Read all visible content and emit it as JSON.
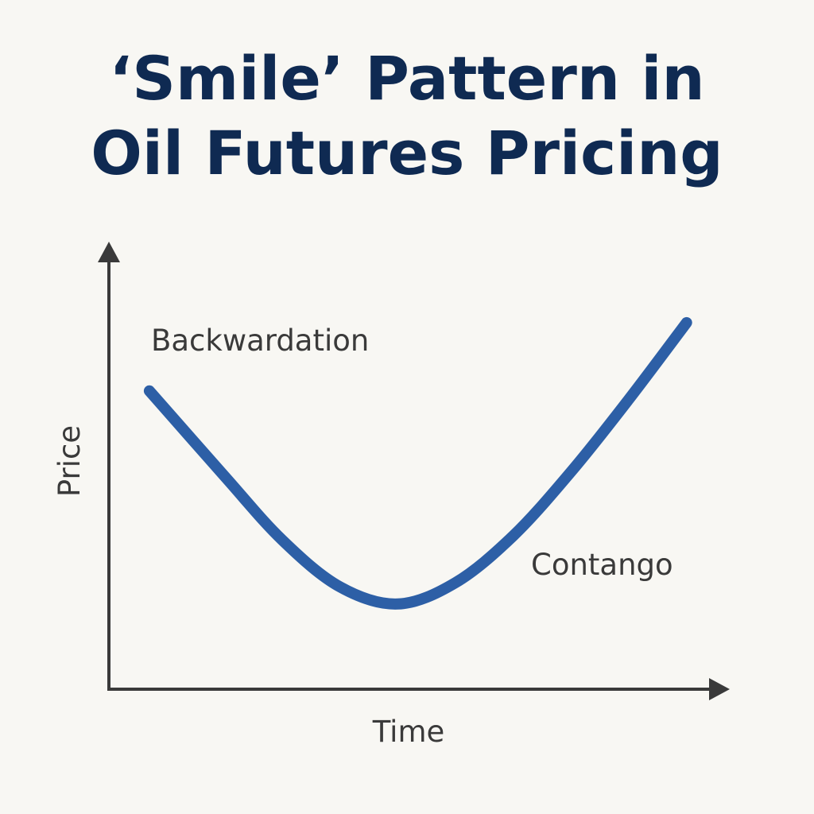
{
  "title": {
    "line1": "‘Smile’ Pattern in",
    "line2": "Oil Futures Pricing"
  },
  "colors": {
    "background": "#f8f7f3",
    "title": "#0f2a52",
    "curve": "#2d5fa6",
    "axis": "#3a3a3a",
    "text": "#3a3a3a"
  },
  "chart_data": {
    "type": "line",
    "title": "‘Smile’ Pattern in Oil Futures Pricing",
    "xlabel": "Time",
    "ylabel": "Price",
    "grid": false,
    "ticks": false,
    "series": [
      {
        "shape": "u-curve",
        "x": [
          0.07,
          0.2,
          0.3,
          0.4,
          0.5,
          0.6,
          0.7,
          0.8,
          0.9,
          1.0
        ],
        "y": [
          0.7,
          0.5,
          0.35,
          0.24,
          0.2,
          0.25,
          0.36,
          0.51,
          0.68,
          0.86
        ]
      }
    ],
    "xlim": [
      0,
      1.05
    ],
    "ylim": [
      0,
      1.05
    ],
    "annotations": [
      {
        "text": "Backwardation",
        "near": "left end of curve"
      },
      {
        "text": "Contango",
        "near": "right of curve minimum"
      }
    ]
  }
}
